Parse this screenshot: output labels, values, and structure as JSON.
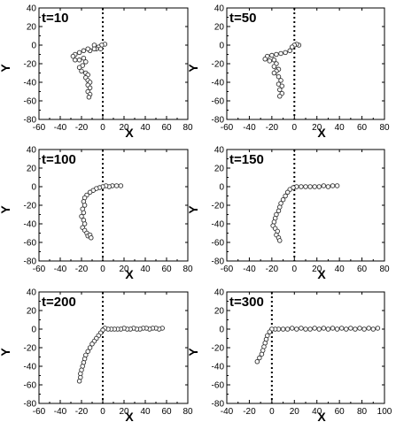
{
  "chart_data": [
    {
      "type": "scatter",
      "title": "t=10",
      "xlabel": "X",
      "ylabel": "Y",
      "xlim": [
        -60,
        80
      ],
      "ylim": [
        -80,
        40
      ],
      "xticks": [
        "-60",
        "-40",
        "-20",
        "0",
        "20",
        "40",
        "60",
        "80"
      ],
      "yticks": [
        "-80",
        "-60",
        "-40",
        "-20",
        "0",
        "20",
        "40"
      ],
      "reference_line_x": 0,
      "path": [
        [
          2,
          1
        ],
        [
          -1,
          0
        ],
        [
          -4,
          -2
        ],
        [
          -2,
          -4
        ],
        [
          -6,
          -4
        ],
        [
          -8,
          0
        ],
        [
          -8,
          -4
        ],
        [
          -12,
          -6
        ],
        [
          -14,
          -4
        ],
        [
          -18,
          -6
        ],
        [
          -22,
          -8
        ],
        [
          -26,
          -10
        ],
        [
          -28,
          -12
        ],
        [
          -26,
          -16
        ],
        [
          -22,
          -16
        ],
        [
          -18,
          -14
        ],
        [
          -16,
          -18
        ],
        [
          -19,
          -22
        ],
        [
          -22,
          -24
        ],
        [
          -20,
          -28
        ],
        [
          -16,
          -30
        ],
        [
          -14,
          -32
        ],
        [
          -16,
          -35
        ],
        [
          -14,
          -38
        ],
        [
          -12,
          -40
        ],
        [
          -14,
          -43
        ],
        [
          -12,
          -46
        ],
        [
          -14,
          -50
        ],
        [
          -12,
          -53
        ],
        [
          -13,
          -56
        ]
      ]
    },
    {
      "type": "scatter",
      "title": "t=50",
      "xlabel": "X",
      "ylabel": "Y",
      "xlim": [
        -60,
        80
      ],
      "ylim": [
        -80,
        40
      ],
      "xticks": [
        "-60",
        "-40",
        "-20",
        "0",
        "20",
        "40",
        "60",
        "80"
      ],
      "yticks": [
        "-80",
        "-60",
        "-40",
        "-20",
        "0",
        "20",
        "40"
      ],
      "reference_line_x": 0,
      "path": [
        [
          4,
          0
        ],
        [
          2,
          1
        ],
        [
          0,
          0
        ],
        [
          -2,
          -2
        ],
        [
          -4,
          -6
        ],
        [
          -8,
          -8
        ],
        [
          -12,
          -9
        ],
        [
          -16,
          -10
        ],
        [
          -20,
          -11
        ],
        [
          -24,
          -12
        ],
        [
          -26,
          -15
        ],
        [
          -22,
          -17
        ],
        [
          -18,
          -16
        ],
        [
          -16,
          -20
        ],
        [
          -18,
          -23
        ],
        [
          -14,
          -26
        ],
        [
          -16,
          -28
        ],
        [
          -18,
          -30
        ],
        [
          -14,
          -34
        ],
        [
          -12,
          -38
        ],
        [
          -14,
          -42
        ],
        [
          -11,
          -44
        ],
        [
          -13,
          -48
        ],
        [
          -11,
          -52
        ],
        [
          -13,
          -55
        ]
      ]
    },
    {
      "type": "scatter",
      "title": "t=100",
      "xlabel": "X",
      "ylabel": "Y",
      "xlim": [
        -60,
        80
      ],
      "ylim": [
        -80,
        40
      ],
      "xticks": [
        "-60",
        "-40",
        "-20",
        "0",
        "20",
        "40",
        "60",
        "80"
      ],
      "yticks": [
        "-80",
        "-60",
        "-40",
        "-20",
        "0",
        "20",
        "40"
      ],
      "reference_line_x": 0,
      "path": [
        [
          17,
          1
        ],
        [
          13,
          1
        ],
        [
          9,
          1
        ],
        [
          6,
          0
        ],
        [
          3,
          1
        ],
        [
          0,
          0
        ],
        [
          -3,
          -1
        ],
        [
          -6,
          -2
        ],
        [
          -9,
          -4
        ],
        [
          -12,
          -6
        ],
        [
          -15,
          -9
        ],
        [
          -17,
          -12
        ],
        [
          -18,
          -16
        ],
        [
          -17,
          -20
        ],
        [
          -19,
          -24
        ],
        [
          -18,
          -28
        ],
        [
          -20,
          -32
        ],
        [
          -18,
          -36
        ],
        [
          -17,
          -40
        ],
        [
          -19,
          -44
        ],
        [
          -17,
          -47
        ],
        [
          -15,
          -50
        ],
        [
          -14,
          -53
        ],
        [
          -12,
          -52
        ],
        [
          -11,
          -55
        ]
      ]
    },
    {
      "type": "scatter",
      "title": "t=150",
      "xlabel": "X",
      "ylabel": "Y",
      "xlim": [
        -60,
        80
      ],
      "ylim": [
        -80,
        40
      ],
      "xticks": [
        "-60",
        "-40",
        "-20",
        "0",
        "20",
        "40",
        "60",
        "80"
      ],
      "yticks": [
        "-80",
        "-60",
        "-40",
        "-20",
        "0",
        "20",
        "40"
      ],
      "reference_line_x": 0,
      "path": [
        [
          38,
          1
        ],
        [
          34,
          1
        ],
        [
          30,
          0
        ],
        [
          26,
          1
        ],
        [
          22,
          0
        ],
        [
          18,
          0
        ],
        [
          14,
          0
        ],
        [
          10,
          0
        ],
        [
          6,
          0
        ],
        [
          2,
          0
        ],
        [
          -1,
          -1
        ],
        [
          -4,
          -3
        ],
        [
          -6,
          -6
        ],
        [
          -8,
          -10
        ],
        [
          -10,
          -14
        ],
        [
          -12,
          -18
        ],
        [
          -13,
          -22
        ],
        [
          -14,
          -26
        ],
        [
          -16,
          -30
        ],
        [
          -17,
          -34
        ],
        [
          -18,
          -38
        ],
        [
          -19,
          -42
        ],
        [
          -17,
          -45
        ],
        [
          -15,
          -48
        ],
        [
          -16,
          -52
        ],
        [
          -14,
          -55
        ],
        [
          -13,
          -58
        ]
      ]
    },
    {
      "type": "scatter",
      "title": "t=200",
      "xlabel": "X",
      "ylabel": "Y",
      "xlim": [
        -60,
        80
      ],
      "ylim": [
        -80,
        40
      ],
      "xticks": [
        "-60",
        "-40",
        "-20",
        "0",
        "20",
        "40",
        "60",
        "80"
      ],
      "yticks": [
        "-80",
        "-60",
        "-40",
        "-20",
        "0",
        "20",
        "40"
      ],
      "reference_line_x": 0,
      "path": [
        [
          56,
          1
        ],
        [
          53,
          0
        ],
        [
          50,
          1
        ],
        [
          47,
          1
        ],
        [
          44,
          0
        ],
        [
          41,
          1
        ],
        [
          38,
          1
        ],
        [
          35,
          0
        ],
        [
          32,
          0
        ],
        [
          29,
          1
        ],
        [
          26,
          0
        ],
        [
          23,
          0
        ],
        [
          20,
          1
        ],
        [
          17,
          0
        ],
        [
          14,
          0
        ],
        [
          11,
          0
        ],
        [
          8,
          0
        ],
        [
          5,
          0
        ],
        [
          2,
          1
        ],
        [
          0,
          -1
        ],
        [
          -2,
          -4
        ],
        [
          -4,
          -7
        ],
        [
          -6,
          -10
        ],
        [
          -8,
          -13
        ],
        [
          -10,
          -16
        ],
        [
          -12,
          -20
        ],
        [
          -14,
          -24
        ],
        [
          -16,
          -28
        ],
        [
          -17,
          -32
        ],
        [
          -18,
          -36
        ],
        [
          -19,
          -40
        ],
        [
          -20,
          -44
        ],
        [
          -21,
          -48
        ],
        [
          -21,
          -52
        ],
        [
          -22,
          -56
        ]
      ]
    },
    {
      "type": "scatter",
      "title": "t=300",
      "xlabel": "X",
      "ylabel": "Y",
      "xlim": [
        -40,
        100
      ],
      "ylim": [
        -80,
        40
      ],
      "xticks": [
        "-40",
        "-20",
        "0",
        "20",
        "40",
        "60",
        "80",
        "100"
      ],
      "yticks": [
        "-80",
        "-60",
        "-40",
        "-20",
        "0",
        "20",
        "40"
      ],
      "reference_line_x": 0,
      "path": [
        [
          94,
          1
        ],
        [
          90,
          0
        ],
        [
          86,
          1
        ],
        [
          82,
          0
        ],
        [
          78,
          1
        ],
        [
          74,
          0
        ],
        [
          70,
          1
        ],
        [
          66,
          0
        ],
        [
          62,
          1
        ],
        [
          58,
          0
        ],
        [
          54,
          1
        ],
        [
          50,
          0
        ],
        [
          46,
          1
        ],
        [
          42,
          0
        ],
        [
          38,
          1
        ],
        [
          34,
          0
        ],
        [
          30,
          0
        ],
        [
          26,
          1
        ],
        [
          22,
          0
        ],
        [
          18,
          1
        ],
        [
          14,
          0
        ],
        [
          10,
          0
        ],
        [
          6,
          0
        ],
        [
          3,
          0
        ],
        [
          0,
          0
        ],
        [
          -2,
          -3
        ],
        [
          -4,
          -7
        ],
        [
          -5,
          -11
        ],
        [
          -6,
          -15
        ],
        [
          -7,
          -19
        ],
        [
          -8,
          -23
        ],
        [
          -9,
          -27
        ],
        [
          -11,
          -31
        ],
        [
          -13,
          -35
        ]
      ]
    }
  ]
}
